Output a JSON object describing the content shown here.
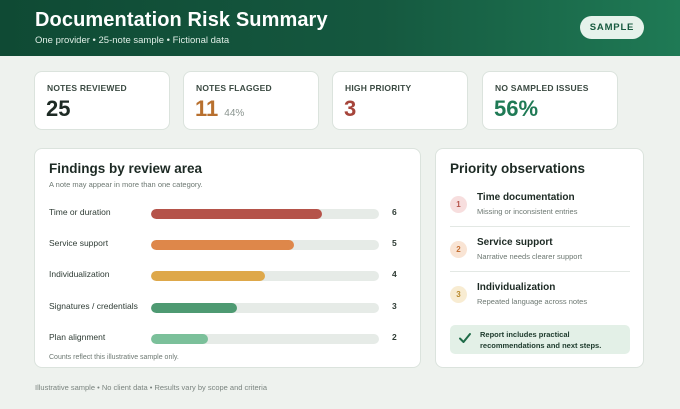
{
  "header": {
    "title": "Documentation Risk Summary",
    "subtitle": "One provider • 25-note sample • Fictional data",
    "sample_button": "SAMPLE"
  },
  "stats": [
    {
      "label": "NOTES REVIEWED",
      "value": "25",
      "extra": "",
      "color": "#1d2a24"
    },
    {
      "label": "NOTES FLAGGED",
      "value": "11",
      "extra": "44%",
      "color": "#b8702f"
    },
    {
      "label": "HIGH PRIORITY",
      "value": "3",
      "extra": "",
      "color": "#a6453b"
    },
    {
      "label": "NO SAMPLED ISSUES",
      "value": "56%",
      "extra": "",
      "color": "#1f7a55"
    }
  ],
  "findings": {
    "title": "Findings by review area",
    "subtitle": "A note may appear in more than one category.",
    "footnote": "Counts reflect this illustrative sample only.",
    "max": 8,
    "areas": [
      {
        "label": "Time or duration",
        "value": 6,
        "color": "#b5534a"
      },
      {
        "label": "Service support",
        "value": 5,
        "color": "#de874a"
      },
      {
        "label": "Individualization",
        "value": 4,
        "color": "#dea84a"
      },
      {
        "label": "Signatures / credentials",
        "value": 3,
        "color": "#4e9a72"
      },
      {
        "label": "Plan alignment",
        "value": 2,
        "color": "#7bc09a"
      }
    ]
  },
  "observations": {
    "title": "Priority observations",
    "items": [
      {
        "num": "1",
        "title": "Time documentation",
        "desc": "Missing or inconsistent entries",
        "bg": "#f7dede",
        "fg": "#b5534a"
      },
      {
        "num": "2",
        "title": "Service support",
        "desc": "Narrative needs clearer support",
        "bg": "#f9e4d4",
        "fg": "#c46f34"
      },
      {
        "num": "3",
        "title": "Individualization",
        "desc": "Repeated language across notes",
        "bg": "#f8ecd2",
        "fg": "#b8892c"
      }
    ],
    "callout": "Report includes practical recommendations and next steps."
  },
  "footer": "Illustrative sample • No client data • Results vary by scope and criteria"
}
